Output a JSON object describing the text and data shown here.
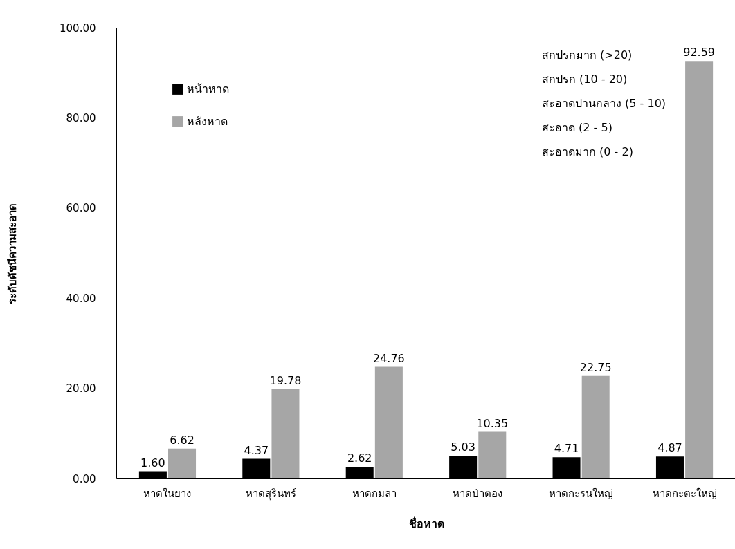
{
  "chart_data": {
    "type": "bar",
    "xlabel": "ชื่อหาด",
    "ylabel": "ระดับดัชนีความสะอาด",
    "categories": [
      "หาดในยาง",
      "หาดสุรินทร์",
      "หาดกมลา",
      "หาดป่าตอง",
      "หาดกะรนใหญ่",
      "หาดกะตะใหญ่"
    ],
    "series": [
      {
        "name": "หน้าหาด",
        "color": "#000000",
        "values": [
          1.6,
          4.37,
          2.62,
          5.03,
          4.71,
          4.87
        ],
        "value_labels": [
          "1.60",
          "4.37",
          "2.62",
          "5.03",
          "4.71",
          "4.87"
        ]
      },
      {
        "name": "หลังหาด",
        "color": "#a6a6a6",
        "values": [
          6.62,
          19.78,
          24.76,
          10.35,
          22.75,
          92.59
        ],
        "value_labels": [
          "6.62",
          "19.78",
          "24.76",
          "10.35",
          "22.75",
          "92.59"
        ]
      }
    ],
    "ylim": [
      0,
      100
    ],
    "yticks": [
      {
        "value": 0,
        "label": "0.00"
      },
      {
        "value": 20,
        "label": "20.00"
      },
      {
        "value": 40,
        "label": "40.00"
      },
      {
        "value": 60,
        "label": "60.00"
      },
      {
        "value": 80,
        "label": "80.00"
      },
      {
        "value": 100,
        "label": "100.00"
      }
    ],
    "grid": false,
    "legend": "top left",
    "annotations": [
      "สกปรกมาก (>20)",
      "สกปรก (10 - 20)",
      "สะอาดปานกลาง (5 - 10)",
      "สะอาด (2 - 5)",
      "สะอาดมาก (0 - 2)"
    ]
  }
}
